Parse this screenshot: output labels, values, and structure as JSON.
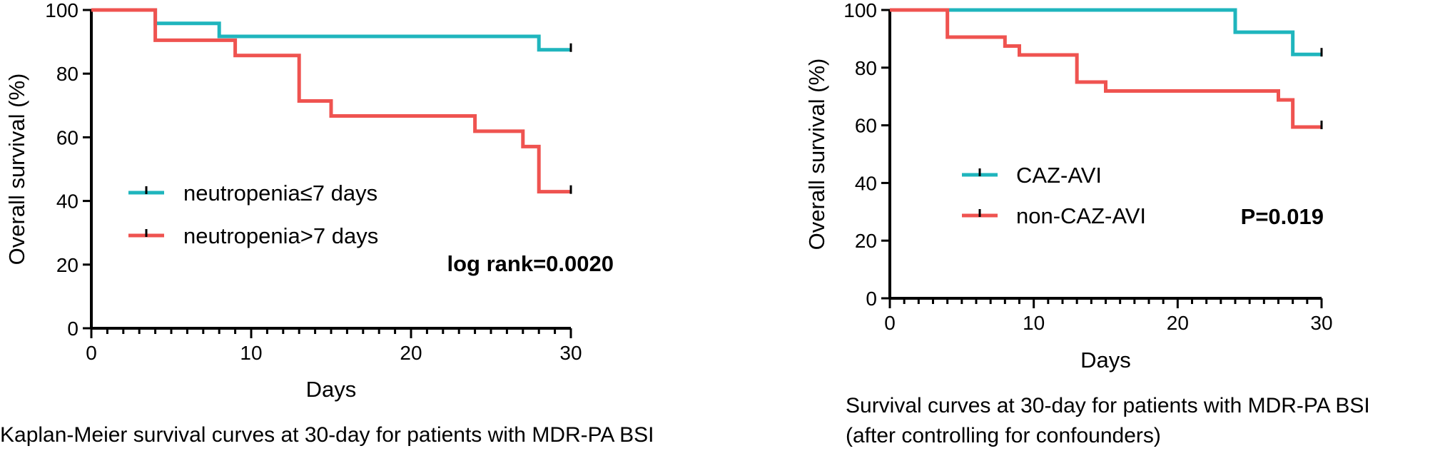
{
  "colors": {
    "teal": "#1fb5bd",
    "red": "#ef5350",
    "axis": "#000000"
  },
  "chart_data": [
    {
      "type": "line",
      "subtype": "kaplan-meier",
      "caption": "Kaplan-Meier survival curves at 30-day for patients with MDR-PA BSI",
      "xlabel": "Days",
      "ylabel": "Overall survival (%)",
      "xlim": [
        0,
        30
      ],
      "ylim": [
        0,
        100
      ],
      "xticks": [
        0,
        10,
        20,
        30
      ],
      "yticks": [
        0,
        20,
        40,
        60,
        80,
        100
      ],
      "x_minor_step": 1,
      "stat_label": "log rank=0.0020",
      "legend_position": "center-left",
      "series": [
        {
          "name": "neutropenia≤7 days",
          "color": "#1fb5bd",
          "x": [
            0,
            4,
            8,
            28,
            30
          ],
          "y": [
            100,
            95.8,
            91.7,
            87.5,
            87.5
          ],
          "censor_x": [
            30
          ]
        },
        {
          "name": "neutropenia>7 days",
          "color": "#ef5350",
          "x": [
            0,
            4,
            9,
            13,
            15,
            24,
            27,
            28,
            30
          ],
          "y": [
            100,
            90.5,
            85.7,
            71.4,
            66.7,
            61.9,
            57.1,
            42.9,
            42.9
          ],
          "censor_x": [
            30
          ]
        }
      ]
    },
    {
      "type": "line",
      "subtype": "kaplan-meier",
      "caption": "Survival curves at 30-day for patients with MDR-PA BSI\n(after controlling for confounders)",
      "xlabel": "Days",
      "ylabel": "Overall survival (%)",
      "xlim": [
        0,
        30
      ],
      "ylim": [
        0,
        100
      ],
      "xticks": [
        0,
        10,
        20,
        30
      ],
      "yticks": [
        0,
        20,
        40,
        60,
        80,
        100
      ],
      "x_minor_step": 1,
      "stat_label": "P=0.019",
      "legend_position": "center-left",
      "series": [
        {
          "name": "CAZ-AVI",
          "color": "#1fb5bd",
          "x": [
            0,
            24,
            28,
            30
          ],
          "y": [
            100,
            92.3,
            84.6,
            84.6
          ],
          "censor_x": [
            30
          ]
        },
        {
          "name": "non-CAZ-AVI",
          "color": "#ef5350",
          "x": [
            0,
            4,
            8,
            9,
            13,
            15,
            27,
            28,
            30
          ],
          "y": [
            100,
            90.6,
            87.5,
            84.4,
            75,
            71.9,
            68.8,
            59.4,
            59.4
          ],
          "censor_x": [
            30
          ]
        }
      ]
    }
  ]
}
